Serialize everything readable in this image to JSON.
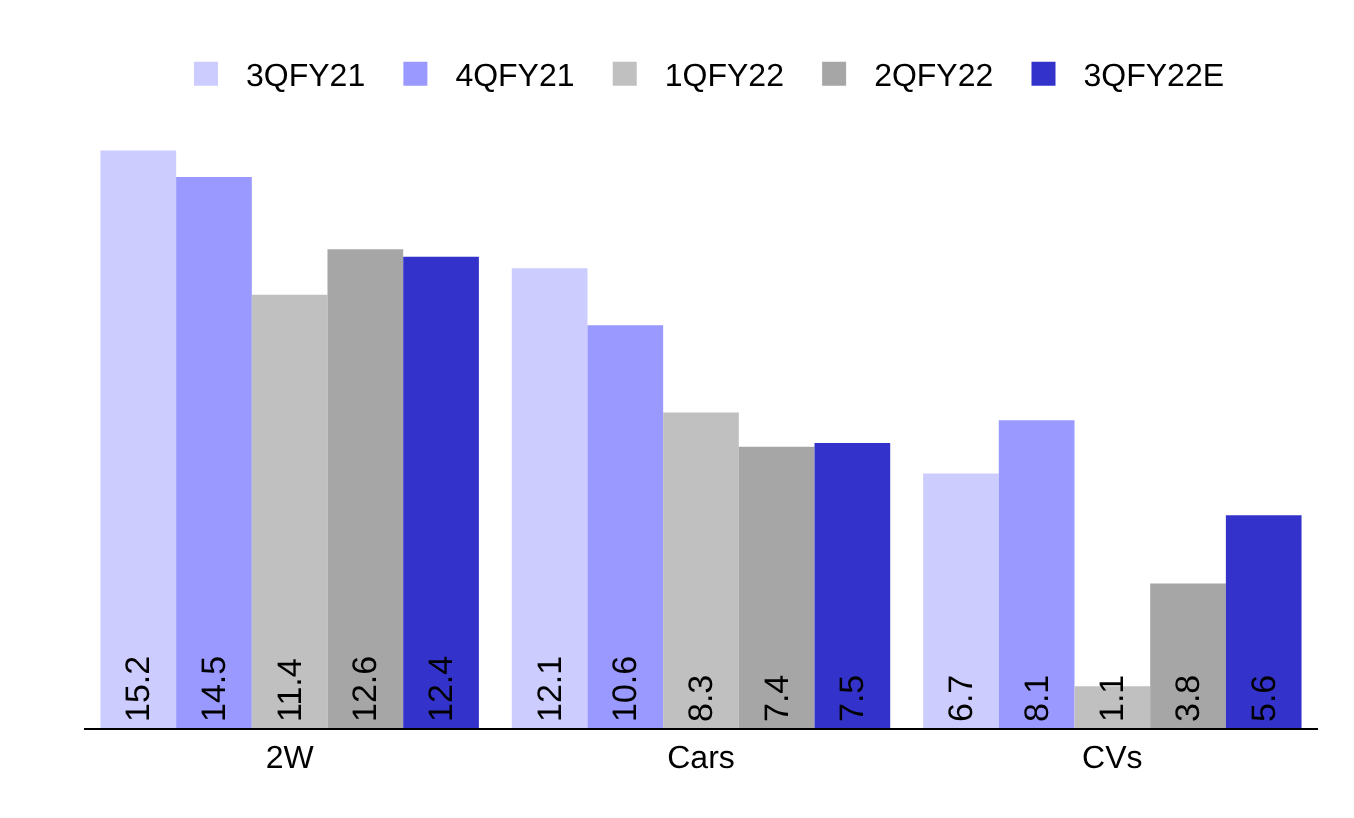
{
  "chart_data": {
    "type": "bar",
    "categories": [
      "2W",
      "Cars",
      "CVs"
    ],
    "series": [
      {
        "name": "3QFY21",
        "color": "#ccccff",
        "values": [
          15.2,
          12.1,
          6.7
        ]
      },
      {
        "name": "4QFY21",
        "color": "#9999ff",
        "values": [
          14.5,
          10.6,
          8.1
        ]
      },
      {
        "name": "1QFY22",
        "color": "#c0c0c0",
        "values": [
          11.4,
          8.3,
          1.1
        ]
      },
      {
        "name": "2QFY22",
        "color": "#a6a6a6",
        "values": [
          12.6,
          7.4,
          3.8
        ]
      },
      {
        "name": "3QFY22E",
        "color": "#3333cc",
        "values": [
          12.4,
          7.5,
          5.6
        ]
      }
    ],
    "data_labels": true,
    "legend": "top"
  }
}
